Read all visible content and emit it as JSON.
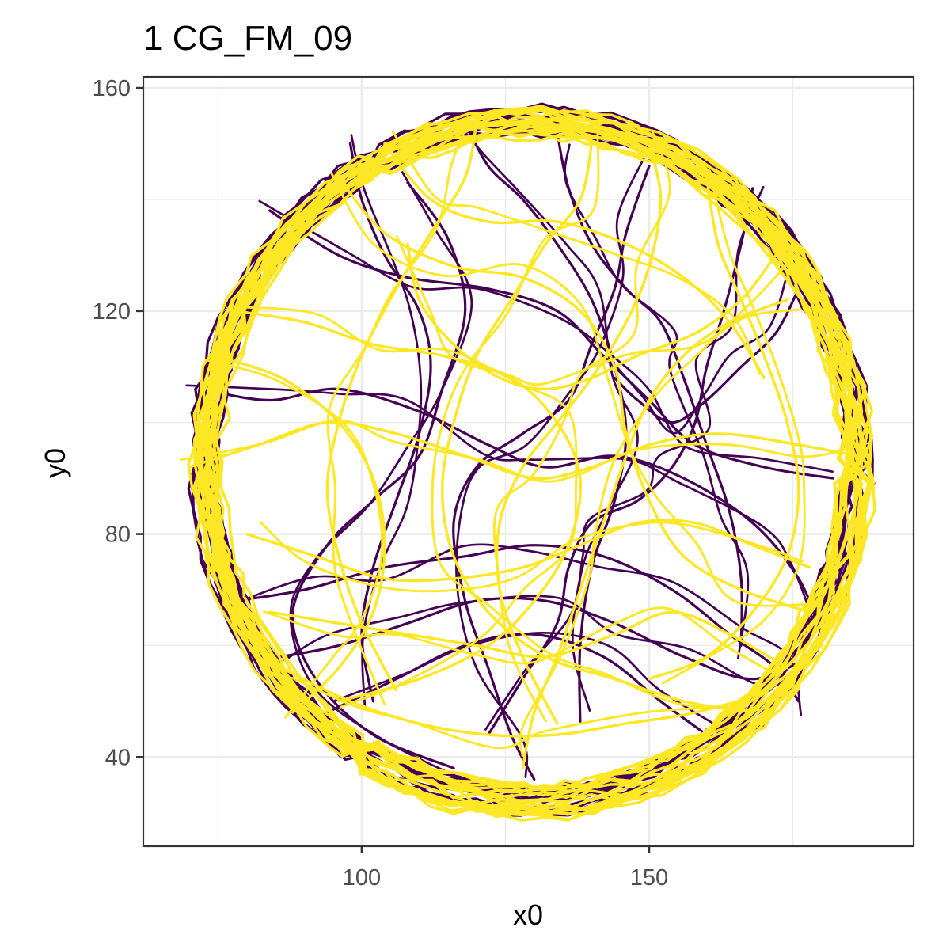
{
  "chart_data": {
    "type": "line",
    "title": "1 CG_FM_09",
    "xlabel": "x0",
    "ylabel": "y0",
    "xlim": [
      62,
      196
    ],
    "ylim": [
      24,
      162
    ],
    "x_ticks": [
      100,
      150
    ],
    "y_ticks": [
      40,
      80,
      120,
      160
    ],
    "x_minor_ticks": [
      75,
      125,
      175
    ],
    "y_minor_ticks": [
      60,
      100,
      140
    ],
    "grid": true,
    "legend": "none",
    "arena": {
      "center": [
        129.5,
        93
      ],
      "radius_x": 57.7,
      "radius_y": 62.2
    },
    "series": [
      {
        "color": "#440154",
        "stroke_width": 3.2,
        "ring_laps": 16,
        "wander_paths": [
          [
            [
              108,
              143
            ],
            [
              115,
              133
            ],
            [
              118,
              120
            ],
            [
              114,
              106
            ],
            [
              110,
              94
            ],
            [
              102,
              86
            ],
            [
              94,
              78
            ],
            [
              88,
              66
            ],
            [
              92,
              54
            ],
            [
              102,
              44
            ],
            [
              116,
              38
            ]
          ],
          [
            [
              150,
              146
            ],
            [
              146,
              134
            ],
            [
              144,
              124
            ],
            [
              140,
              114
            ],
            [
              136,
              104
            ],
            [
              128,
              98
            ],
            [
              120,
              92
            ],
            [
              116,
              82
            ],
            [
              118,
              68
            ],
            [
              122,
              56
            ],
            [
              126,
              44
            ],
            [
              130,
              36
            ]
          ],
          [
            [
              168,
              142
            ],
            [
              166,
              132
            ],
            [
              163,
              120
            ],
            [
              160,
              110
            ],
            [
              158,
              100
            ],
            [
              154,
              92
            ],
            [
              148,
              86
            ],
            [
              140,
              82
            ],
            [
              136,
              74
            ],
            [
              134,
              64
            ],
            [
              128,
              54
            ],
            [
              122,
              44
            ]
          ],
          [
            [
              84,
              138
            ],
            [
              96,
              130
            ],
            [
              108,
              126
            ],
            [
              122,
              124
            ],
            [
              134,
              120
            ],
            [
              142,
              112
            ],
            [
              150,
              104
            ],
            [
              158,
              96
            ],
            [
              170,
              92
            ],
            [
              182,
              90
            ]
          ],
          [
            [
              72,
              106
            ],
            [
              84,
              104
            ],
            [
              96,
              106
            ],
            [
              110,
              102
            ],
            [
              122,
              96
            ],
            [
              132,
              92
            ],
            [
              144,
              94
            ],
            [
              156,
              90
            ],
            [
              168,
              82
            ],
            [
              176,
              72
            ],
            [
              180,
              62
            ]
          ],
          [
            [
              78,
              68
            ],
            [
              90,
              70
            ],
            [
              104,
              74
            ],
            [
              118,
              76
            ],
            [
              130,
              78
            ],
            [
              142,
              76
            ],
            [
              154,
              70
            ],
            [
              164,
              62
            ],
            [
              172,
              56
            ],
            [
              176,
              50
            ]
          ],
          [
            [
              94,
              48
            ],
            [
              106,
              54
            ],
            [
              118,
              60
            ],
            [
              130,
              62
            ],
            [
              142,
              58
            ],
            [
              152,
              50
            ],
            [
              160,
              44
            ]
          ],
          [
            [
              134,
              152
            ],
            [
              136,
              142
            ],
            [
              140,
              132
            ],
            [
              146,
              124
            ],
            [
              152,
              118
            ],
            [
              156,
              108
            ],
            [
              160,
              96
            ],
            [
              164,
              84
            ],
            [
              166,
              72
            ],
            [
              166,
              60
            ]
          ],
          [
            [
              98,
              150
            ],
            [
              100,
              140
            ],
            [
              104,
              130
            ],
            [
              110,
              120
            ],
            [
              112,
              110
            ],
            [
              110,
              98
            ],
            [
              106,
              86
            ],
            [
              102,
              74
            ],
            [
              100,
              62
            ],
            [
              102,
              50
            ]
          ],
          [
            [
              118,
              154
            ],
            [
              122,
              146
            ],
            [
              128,
              140
            ],
            [
              134,
              132
            ],
            [
              140,
              122
            ],
            [
              144,
              110
            ],
            [
              146,
              98
            ],
            [
              144,
              86
            ],
            [
              140,
              74
            ],
            [
              138,
              60
            ],
            [
              138,
              46
            ]
          ],
          [
            [
              176,
              124
            ],
            [
              172,
              116
            ],
            [
              166,
              110
            ],
            [
              160,
              104
            ],
            [
              154,
              100
            ],
            [
              148,
              104
            ],
            [
              144,
              108
            ]
          ],
          [
            [
              86,
              58
            ],
            [
              96,
              60
            ],
            [
              108,
              64
            ],
            [
              120,
              68
            ],
            [
              132,
              68
            ],
            [
              144,
              64
            ],
            [
              156,
              58
            ],
            [
              168,
              54
            ],
            [
              178,
              58
            ]
          ]
        ]
      },
      {
        "color": "#fde725",
        "stroke_width": 3.4,
        "ring_laps": 22,
        "wander_paths": [
          [
            [
              96,
              144
            ],
            [
              104,
              134
            ],
            [
              116,
              128
            ],
            [
              128,
              126
            ],
            [
              138,
              120
            ],
            [
              144,
              110
            ],
            [
              146,
              98
            ],
            [
              150,
              86
            ],
            [
              156,
              76
            ],
            [
              166,
              70
            ],
            [
              178,
              66
            ]
          ],
          [
            [
              78,
              120
            ],
            [
              90,
              118
            ],
            [
              102,
              114
            ],
            [
              114,
              112
            ],
            [
              126,
              108
            ],
            [
              134,
              100
            ],
            [
              138,
              90
            ],
            [
              136,
              78
            ],
            [
              130,
              68
            ],
            [
              122,
              60
            ],
            [
              110,
              54
            ],
            [
              96,
              50
            ]
          ],
          [
            [
              140,
              150
            ],
            [
              138,
              140
            ],
            [
              132,
              132
            ],
            [
              126,
              122
            ],
            [
              120,
              112
            ],
            [
              116,
              100
            ],
            [
              114,
              88
            ],
            [
              116,
              76
            ],
            [
              122,
              66
            ],
            [
              132,
              58
            ],
            [
              144,
              54
            ],
            [
              156,
              50
            ],
            [
              168,
              48
            ]
          ],
          [
            [
              160,
              144
            ],
            [
              162,
              132
            ],
            [
              166,
              122
            ],
            [
              170,
              112
            ],
            [
              174,
              100
            ],
            [
              176,
              88
            ],
            [
              174,
              76
            ],
            [
              168,
              66
            ],
            [
              160,
              58
            ],
            [
              150,
              54
            ]
          ],
          [
            [
              70,
              92
            ],
            [
              82,
              96
            ],
            [
              94,
              100
            ],
            [
              106,
              98
            ],
            [
              118,
              94
            ],
            [
              130,
              90
            ],
            [
              140,
              92
            ],
            [
              150,
              96
            ],
            [
              162,
              98
            ],
            [
              176,
              96
            ],
            [
              186,
              94
            ]
          ],
          [
            [
              80,
              80
            ],
            [
              92,
              76
            ],
            [
              104,
              72
            ],
            [
              116,
              72
            ],
            [
              128,
              74
            ],
            [
              138,
              78
            ],
            [
              148,
              82
            ],
            [
              158,
              82
            ],
            [
              168,
              78
            ],
            [
              178,
              74
            ]
          ],
          [
            [
              104,
              150
            ],
            [
              112,
              140
            ],
            [
              122,
              136
            ],
            [
              134,
              136
            ],
            [
              146,
              132
            ],
            [
              156,
              126
            ],
            [
              164,
              118
            ],
            [
              170,
              108
            ]
          ],
          [
            [
              86,
              56
            ],
            [
              98,
              50
            ],
            [
              110,
              46
            ],
            [
              122,
              44
            ],
            [
              134,
              44
            ],
            [
              146,
              46
            ],
            [
              158,
              48
            ],
            [
              170,
              52
            ],
            [
              180,
              60
            ]
          ],
          [
            [
              120,
              154
            ],
            [
              118,
              144
            ],
            [
              112,
              134
            ],
            [
              106,
              124
            ],
            [
              100,
              112
            ],
            [
              96,
              100
            ],
            [
              94,
              88
            ],
            [
              96,
              76
            ],
            [
              100,
              64
            ],
            [
              106,
              52
            ]
          ],
          [
            [
              150,
              150
            ],
            [
              152,
              140
            ],
            [
              150,
              128
            ],
            [
              146,
              118
            ],
            [
              140,
              108
            ],
            [
              134,
              100
            ],
            [
              128,
              92
            ],
            [
              124,
              82
            ],
            [
              124,
              70
            ],
            [
              128,
              58
            ],
            [
              134,
              46
            ]
          ],
          [
            [
              74,
              112
            ],
            [
              86,
              108
            ],
            [
              96,
              100
            ],
            [
              102,
              90
            ],
            [
              104,
              78
            ],
            [
              102,
              66
            ],
            [
              96,
              56
            ],
            [
              88,
              48
            ]
          ],
          [
            [
              172,
              130
            ],
            [
              166,
              122
            ],
            [
              158,
              116
            ],
            [
              148,
              112
            ],
            [
              140,
              108
            ],
            [
              132,
              106
            ],
            [
              124,
              108
            ],
            [
              116,
              114
            ],
            [
              110,
              122
            ],
            [
              108,
              132
            ]
          ],
          [
            [
              84,
              66
            ],
            [
              96,
              64
            ],
            [
              108,
              62
            ],
            [
              120,
              60
            ],
            [
              132,
              58
            ],
            [
              144,
              62
            ],
            [
              154,
              66
            ],
            [
              164,
              62
            ],
            [
              174,
              56
            ]
          ],
          [
            [
              128,
              38
            ],
            [
              130,
              48
            ],
            [
              134,
              58
            ],
            [
              138,
              70
            ],
            [
              142,
              82
            ],
            [
              146,
              94
            ],
            [
              150,
              104
            ],
            [
              156,
              112
            ],
            [
              164,
              118
            ],
            [
              174,
              122
            ]
          ]
        ]
      }
    ]
  }
}
